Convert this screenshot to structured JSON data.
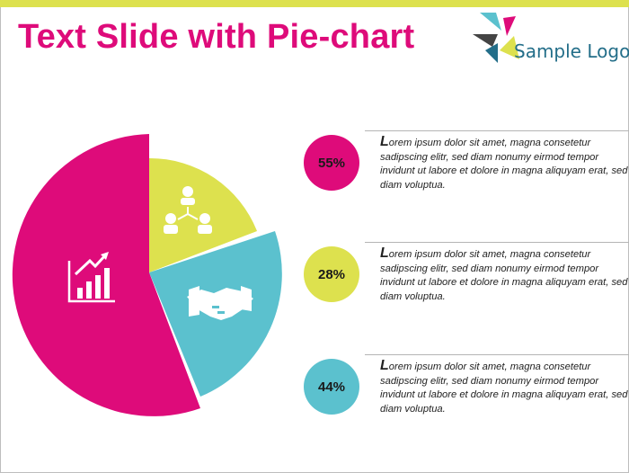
{
  "slide": {
    "title": "Text Slide with Pie-chart",
    "logo_text": "Sample Logo"
  },
  "colors": {
    "magenta": "#de0b7a",
    "lime": "#dde14e",
    "teal": "#5bc1ce",
    "logo_blue": "#236e89"
  },
  "icons": {
    "slice_magenta": "growth-chart-icon",
    "slice_lime": "team-network-icon",
    "slice_teal": "handshake-icon"
  },
  "chart_data": {
    "type": "pie",
    "slices": [
      {
        "color": "#de0b7a",
        "label": "55%",
        "value": 55
      },
      {
        "color": "#5bc1ce",
        "label": "44%",
        "value": 44
      },
      {
        "color": "#dde14e",
        "label": "28%",
        "value": 28
      }
    ]
  },
  "items": [
    {
      "percent": "55%",
      "initial": "L",
      "text": "orem ipsum dolor sit amet, magna consetetur sadipscing elitr, sed diam nonumy eirmod tempor invidunt ut labore et dolore in magna aliquyam erat, sed diam voluptua."
    },
    {
      "percent": "28%",
      "initial": "L",
      "text": "orem ipsum dolor sit amet, magna consetetur sadipscing elitr, sed diam nonumy eirmod tempor invidunt ut labore et dolore in magna aliquyam erat, sed diam voluptua."
    },
    {
      "percent": "44%",
      "initial": "L",
      "text": "orem ipsum dolor sit amet, magna consetetur sadipscing elitr, sed diam nonumy eirmod tempor invidunt ut labore et dolore in magna aliquyam erat, sed diam voluptua."
    }
  ]
}
